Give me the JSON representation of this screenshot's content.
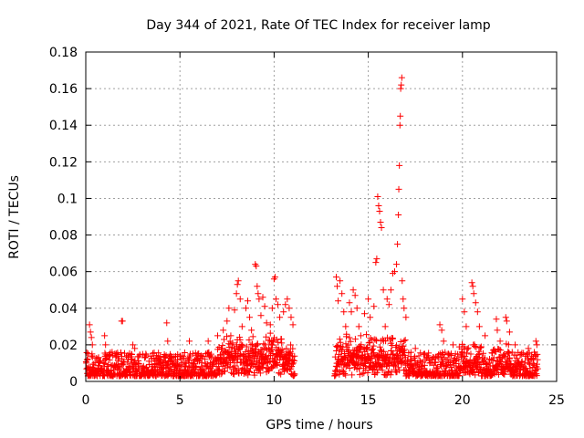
{
  "chart_data": {
    "type": "scatter",
    "title": "Day 344 of 2021, Rate Of TEC Index for receiver lamp",
    "xlabel": "GPS time / hours",
    "ylabel": "ROTI / TECUs",
    "xlim": [
      0,
      25
    ],
    "ylim": [
      0,
      0.18
    ],
    "xticks": [
      0,
      5,
      10,
      15,
      20,
      25
    ],
    "xtick_labels": [
      "0",
      "5",
      "10",
      "15",
      "20",
      "25"
    ],
    "yticks": [
      0,
      0.02,
      0.04,
      0.06,
      0.08,
      0.1,
      0.12,
      0.14,
      0.16,
      0.18
    ],
    "ytick_labels": [
      "0",
      "0.02",
      "0.04",
      "0.06",
      "0.08",
      "0.1",
      "0.12",
      "0.14",
      "0.16",
      "0.18"
    ],
    "grid": true,
    "marker": "+",
    "color": "#ff0000",
    "gap_hours": [
      11.1,
      13.2
    ],
    "series": [
      {
        "name": "ROTI",
        "points": [
          [
            0.2,
            0.031
          ],
          [
            0.25,
            0.027
          ],
          [
            0.3,
            0.024
          ],
          [
            0.35,
            0.02
          ],
          [
            1.0,
            0.025
          ],
          [
            1.05,
            0.02
          ],
          [
            1.9,
            0.033
          ],
          [
            1.95,
            0.033
          ],
          [
            2.5,
            0.02
          ],
          [
            2.6,
            0.018
          ],
          [
            4.3,
            0.032
          ],
          [
            4.35,
            0.022
          ],
          [
            5.5,
            0.022
          ],
          [
            6.5,
            0.022
          ],
          [
            7.0,
            0.025
          ],
          [
            7.3,
            0.028
          ],
          [
            7.5,
            0.033
          ],
          [
            7.6,
            0.04
          ],
          [
            7.7,
            0.025
          ],
          [
            7.9,
            0.039
          ],
          [
            8.0,
            0.048
          ],
          [
            8.05,
            0.053
          ],
          [
            8.1,
            0.055
          ],
          [
            8.2,
            0.045
          ],
          [
            8.3,
            0.03
          ],
          [
            8.5,
            0.04
          ],
          [
            8.6,
            0.044
          ],
          [
            8.7,
            0.035
          ],
          [
            8.8,
            0.028
          ],
          [
            9.0,
            0.064
          ],
          [
            9.05,
            0.063
          ],
          [
            9.1,
            0.052
          ],
          [
            9.15,
            0.048
          ],
          [
            9.2,
            0.045
          ],
          [
            9.3,
            0.036
          ],
          [
            9.4,
            0.046
          ],
          [
            9.5,
            0.041
          ],
          [
            9.6,
            0.032
          ],
          [
            9.8,
            0.031
          ],
          [
            9.9,
            0.04
          ],
          [
            10.0,
            0.056
          ],
          [
            10.05,
            0.057
          ],
          [
            10.1,
            0.045
          ],
          [
            10.2,
            0.042
          ],
          [
            10.3,
            0.035
          ],
          [
            10.5,
            0.038
          ],
          [
            10.6,
            0.042
          ],
          [
            10.7,
            0.045
          ],
          [
            10.8,
            0.04
          ],
          [
            10.9,
            0.035
          ],
          [
            11.0,
            0.031
          ],
          [
            13.3,
            0.057
          ],
          [
            13.35,
            0.052
          ],
          [
            13.4,
            0.044
          ],
          [
            13.5,
            0.055
          ],
          [
            13.6,
            0.048
          ],
          [
            13.7,
            0.038
          ],
          [
            13.8,
            0.03
          ],
          [
            14.0,
            0.043
          ],
          [
            14.1,
            0.038
          ],
          [
            14.2,
            0.05
          ],
          [
            14.3,
            0.047
          ],
          [
            14.4,
            0.04
          ],
          [
            14.5,
            0.03
          ],
          [
            14.6,
            0.025
          ],
          [
            14.8,
            0.037
          ],
          [
            15.0,
            0.045
          ],
          [
            15.1,
            0.035
          ],
          [
            15.3,
            0.041
          ],
          [
            15.4,
            0.065
          ],
          [
            15.45,
            0.067
          ],
          [
            15.5,
            0.101
          ],
          [
            15.55,
            0.096
          ],
          [
            15.6,
            0.093
          ],
          [
            15.65,
            0.087
          ],
          [
            15.7,
            0.084
          ],
          [
            15.8,
            0.05
          ],
          [
            15.9,
            0.03
          ],
          [
            16.0,
            0.045
          ],
          [
            16.1,
            0.042
          ],
          [
            16.2,
            0.05
          ],
          [
            16.3,
            0.059
          ],
          [
            16.4,
            0.06
          ],
          [
            16.5,
            0.064
          ],
          [
            16.55,
            0.075
          ],
          [
            16.6,
            0.091
          ],
          [
            16.62,
            0.105
          ],
          [
            16.65,
            0.118
          ],
          [
            16.68,
            0.14
          ],
          [
            16.7,
            0.145
          ],
          [
            16.72,
            0.16
          ],
          [
            16.75,
            0.162
          ],
          [
            16.78,
            0.166
          ],
          [
            16.8,
            0.055
          ],
          [
            16.85,
            0.045
          ],
          [
            16.9,
            0.04
          ],
          [
            17.0,
            0.035
          ],
          [
            17.5,
            0.018
          ],
          [
            18.0,
            0.015
          ],
          [
            18.8,
            0.031
          ],
          [
            18.9,
            0.028
          ],
          [
            19.0,
            0.022
          ],
          [
            19.5,
            0.02
          ],
          [
            20.0,
            0.045
          ],
          [
            20.1,
            0.038
          ],
          [
            20.2,
            0.03
          ],
          [
            20.5,
            0.054
          ],
          [
            20.55,
            0.052
          ],
          [
            20.6,
            0.048
          ],
          [
            20.7,
            0.043
          ],
          [
            20.8,
            0.038
          ],
          [
            20.9,
            0.03
          ],
          [
            21.2,
            0.025
          ],
          [
            21.8,
            0.034
          ],
          [
            21.85,
            0.028
          ],
          [
            22.0,
            0.022
          ],
          [
            22.3,
            0.035
          ],
          [
            22.35,
            0.033
          ],
          [
            22.5,
            0.027
          ],
          [
            22.8,
            0.02
          ],
          [
            23.5,
            0.018
          ],
          [
            23.9,
            0.022
          ],
          [
            23.95,
            0.02
          ]
        ]
      }
    ]
  }
}
